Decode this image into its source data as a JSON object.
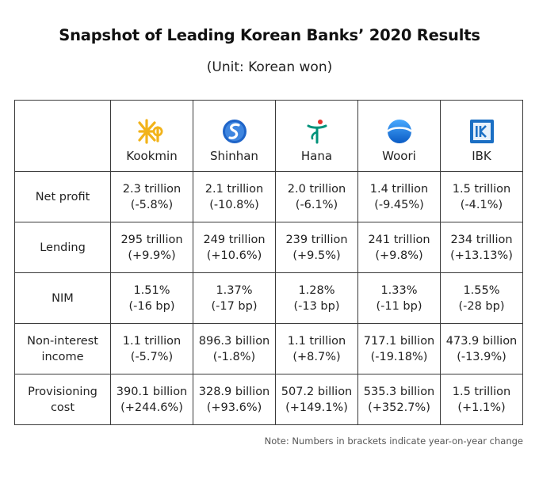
{
  "title": "Snapshot of Leading Korean Banks’ 2020 Results",
  "subtitle": "(Unit: Korean won)",
  "note": "Note: Numbers in brackets indicate year-on-year change",
  "chart_data": {
    "type": "table",
    "columns": [
      "Kookmin",
      "Shinhan",
      "Hana",
      "Woori",
      "IBK"
    ],
    "logo_icons": [
      "kb-star-logo-icon",
      "shinhan-logo-icon",
      "hana-logo-icon",
      "woori-logo-icon",
      "ibk-logo-icon"
    ],
    "colors": {
      "kookmin": "#f2b31a",
      "shinhan": "#1e64c8",
      "hana": "#00927a",
      "hana_accent": "#e4312b",
      "woori": "#0a6fd6",
      "ibk": "#1b6fc4",
      "border": "#3a3a3a"
    },
    "rows": [
      {
        "label": [
          "Net profit"
        ],
        "cells": [
          [
            "2.3 trillion",
            "(-5.8%)"
          ],
          [
            "2.1 trillion",
            "(-10.8%)"
          ],
          [
            "2.0 trillion",
            "(-6.1%)"
          ],
          [
            "1.4 trillion",
            "(-9.45%)"
          ],
          [
            "1.5 trillion",
            "(-4.1%)"
          ]
        ]
      },
      {
        "label": [
          "Lending"
        ],
        "cells": [
          [
            "295 trillion",
            "(+9.9%)"
          ],
          [
            "249 trillion",
            "(+10.6%)"
          ],
          [
            "239 trillion",
            "(+9.5%)"
          ],
          [
            "241 trillion",
            "(+9.8%)"
          ],
          [
            "234 trillion",
            "(+13.13%)"
          ]
        ]
      },
      {
        "label": [
          "NIM"
        ],
        "cells": [
          [
            "1.51%",
            "(-16 bp)"
          ],
          [
            "1.37%",
            "(-17 bp)"
          ],
          [
            "1.28%",
            "(-13 bp)"
          ],
          [
            "1.33%",
            "(-11 bp)"
          ],
          [
            "1.55%",
            "(-28 bp)"
          ]
        ]
      },
      {
        "label": [
          "Non-interest",
          "income"
        ],
        "cells": [
          [
            "1.1 trillion",
            "(-5.7%)"
          ],
          [
            "896.3 billion",
            "(-1.8%)"
          ],
          [
            "1.1 trillion",
            "(+8.7%)"
          ],
          [
            "717.1 billion",
            "(-19.18%)"
          ],
          [
            "473.9 billion",
            "(-13.9%)"
          ]
        ]
      },
      {
        "label": [
          "Provisioning",
          "cost"
        ],
        "cells": [
          [
            "390.1 billion",
            "(+244.6%)"
          ],
          [
            "328.9 billion",
            "(+93.6%)"
          ],
          [
            "507.2 billion",
            "(+149.1%)"
          ],
          [
            "535.3 billion",
            "(+352.7%)"
          ],
          [
            "1.5 trillion",
            "(+1.1%)"
          ]
        ]
      }
    ]
  }
}
